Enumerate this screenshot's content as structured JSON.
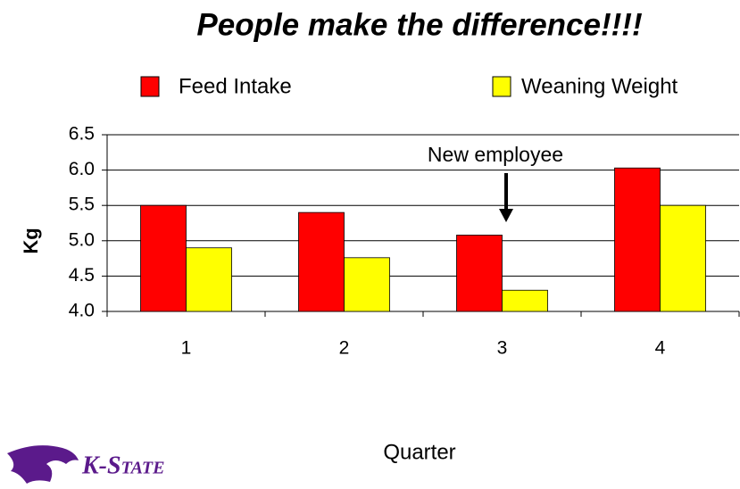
{
  "chart_data": {
    "type": "bar",
    "title": "People make the difference!!!!",
    "categories": [
      "1",
      "2",
      "3",
      "4"
    ],
    "series": [
      {
        "name": "Feed Intake",
        "color": "#ff0000",
        "values": [
          5.5,
          5.4,
          5.08,
          6.03
        ]
      },
      {
        "name": "Weaning Weight",
        "color": "#ffff00",
        "values": [
          4.9,
          4.76,
          4.3,
          5.5
        ]
      }
    ],
    "ylim": [
      4.0,
      6.5
    ],
    "yticks": [
      {
        "value": 4,
        "label": "4.0"
      },
      4.5,
      {
        "value": 5,
        "label": "5.0"
      },
      5.5,
      {
        "value": 6,
        "label": "6.0"
      },
      6.5
    ],
    "ylabel": "Kg",
    "xlabel": "Quarter",
    "annotation": "New employee",
    "grid": true,
    "legend": "top",
    "logo": "K-State"
  }
}
